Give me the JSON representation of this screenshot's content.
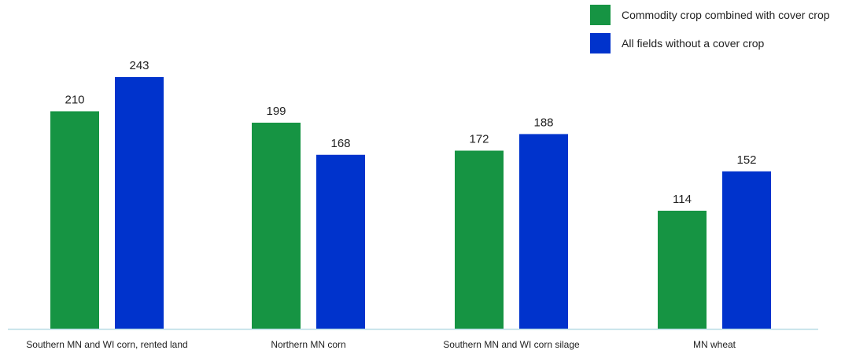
{
  "chart_data": {
    "type": "bar",
    "categories": [
      "Southern MN and WI corn, rented land",
      "Northern MN corn",
      "Southern MN and WI corn silage",
      "MN wheat"
    ],
    "series": [
      {
        "name": "Commodity crop combined with cover crop",
        "values": [
          210,
          199,
          172,
          114
        ],
        "color": "#169443"
      },
      {
        "name": "All fields without a cover crop",
        "values": [
          243,
          168,
          188,
          152
        ],
        "color": "#0033cc"
      }
    ],
    "title": "",
    "xlabel": "",
    "ylabel": "",
    "ylim": [
      0,
      300
    ],
    "grid": false,
    "legend_position": "top-right",
    "axis_color": "#b9dde6"
  }
}
